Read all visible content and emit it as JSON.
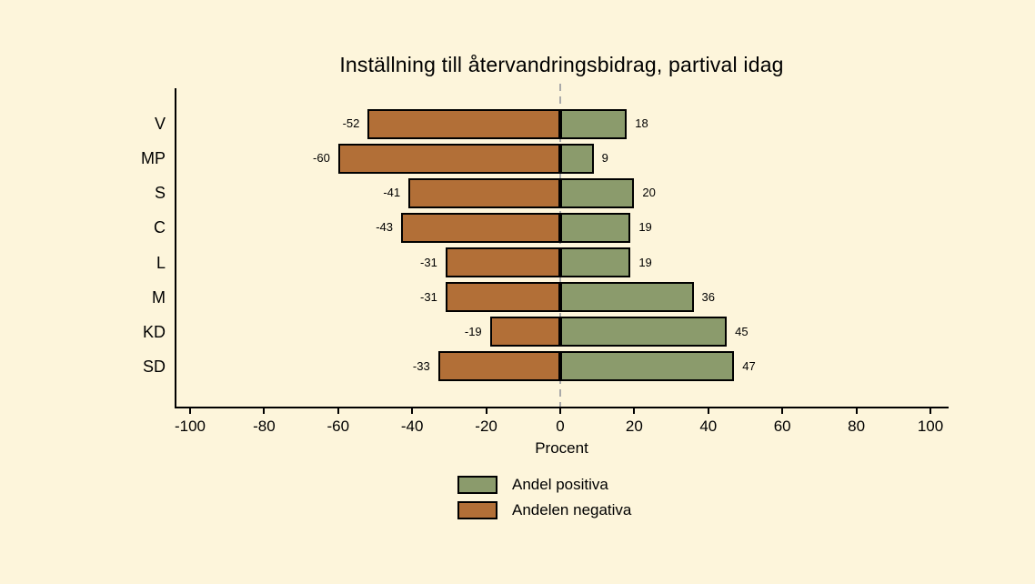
{
  "page": {
    "background_color": "#FDF5DB",
    "axis_color": "#000000",
    "text_color": "#000000"
  },
  "chart_data": {
    "type": "bar",
    "orientation": "horizontal-diverging",
    "title": "Inställning till återvandringsbidrag, partival idag",
    "xlabel": "Procent",
    "categories": [
      "V",
      "MP",
      "S",
      "C",
      "L",
      "M",
      "KD",
      "SD"
    ],
    "series": [
      {
        "name": "Andel positiva",
        "color": "#8B9B6C",
        "values": [
          18,
          9,
          20,
          19,
          19,
          36,
          45,
          47
        ]
      },
      {
        "name": "Andelen negativa",
        "color": "#B26F37",
        "values": [
          -52,
          -60,
          -41,
          -43,
          -31,
          -31,
          -19,
          -33
        ]
      }
    ],
    "x_ticks": [
      -100,
      -80,
      -60,
      -40,
      -20,
      0,
      20,
      40,
      60,
      80,
      100
    ],
    "xlim": [
      -100,
      100
    ],
    "grid": false,
    "zero_line": {
      "style": "dashed",
      "color": "#A9A9A9"
    },
    "bar_border_color": "#000000",
    "legend_position": "bottom-center"
  }
}
